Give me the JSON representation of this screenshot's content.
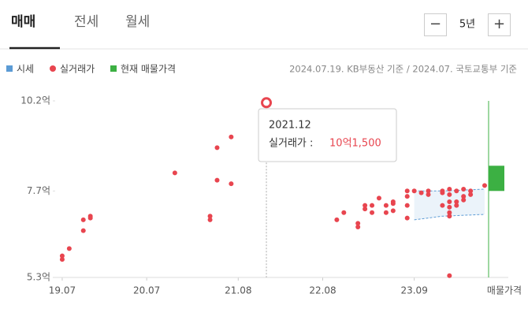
{
  "tabs": [
    "매매",
    "전세",
    "월세"
  ],
  "period": {
    "minus": "−",
    "label": "5년",
    "plus": "+"
  },
  "source": "2024.07.19. KB부동산 기준 / 2024.07. 국토교통부 기준",
  "chart_data": {
    "type": "scatter",
    "ylim": [
      5.3,
      10.2
    ],
    "yticks": [
      {
        "value": 10.2,
        "label": "10.2억"
      },
      {
        "value": 7.7,
        "label": "7.7억"
      },
      {
        "value": 5.3,
        "label": "5.3억"
      }
    ],
    "xlim": [
      "19.06",
      "24.07"
    ],
    "xticks": [
      "19.07",
      "20.07",
      "21.08",
      "22.08",
      "23.09"
    ],
    "listing_label": "매물가격",
    "tooltip": {
      "title": "2021.12",
      "label": "실거래가 :"
    },
    "series": [
      {
        "name": "시세",
        "color": "#5b9bd5",
        "x": [
          "23.09",
          "24.01",
          "24.07"
        ],
        "high": [
          7.7,
          7.7,
          7.75
        ],
        "low": [
          6.9,
          7.0,
          7.05
        ]
      },
      {
        "name": "실거래가",
        "color": "#e8454f",
        "x": [
          "19.07",
          "19.07",
          "19.08",
          "19.10",
          "19.10",
          "19.11",
          "19.11",
          "20.11",
          "21.04",
          "21.04",
          "21.05",
          "21.05",
          "21.07",
          "21.07",
          "21.12",
          "22.10",
          "22.11",
          "23.01",
          "23.01",
          "23.02",
          "23.02",
          "23.03",
          "23.03",
          "23.04",
          "23.05",
          "23.05",
          "23.06",
          "23.06",
          "23.06",
          "23.08",
          "23.08",
          "23.08",
          "23.08",
          "23.09",
          "23.10",
          "23.11",
          "23.11",
          "24.01",
          "24.01",
          "24.01",
          "24.02",
          "24.02",
          "24.02",
          "24.02",
          "24.02",
          "24.02",
          "24.02",
          "24.03",
          "24.03",
          "24.03",
          "24.04",
          "24.04",
          "24.04",
          "24.05",
          "24.05",
          "24.07"
        ],
        "values": [
          5.9,
          5.8,
          6.1,
          6.9,
          6.6,
          7.0,
          6.95,
          8.2,
          7.0,
          6.9,
          8.9,
          8.0,
          9.2,
          7.9,
          10.15,
          6.9,
          7.1,
          6.8,
          6.7,
          7.2,
          7.3,
          7.3,
          7.1,
          7.5,
          7.3,
          7.1,
          7.35,
          7.4,
          7.15,
          7.7,
          7.55,
          7.3,
          6.95,
          7.7,
          7.65,
          7.7,
          7.6,
          7.65,
          7.7,
          7.3,
          7.75,
          7.6,
          7.4,
          7.25,
          7.1,
          7.0,
          5.35,
          7.7,
          7.4,
          7.3,
          7.75,
          7.55,
          7.45,
          7.7,
          7.6,
          7.85
        ],
        "value_labels": [
          null,
          null,
          null,
          null,
          null,
          null,
          null,
          null,
          null,
          null,
          null,
          null,
          null,
          null,
          "10억1,500",
          null,
          null,
          null,
          null,
          null,
          null,
          null,
          null,
          null,
          null,
          null,
          null,
          null,
          null,
          null,
          null,
          null,
          null,
          null,
          null,
          null,
          null,
          null,
          null,
          null,
          null,
          null,
          null,
          null,
          null,
          null,
          null,
          null,
          null,
          null,
          null,
          null,
          null,
          null,
          null,
          null
        ]
      },
      {
        "name": "현재 매물가격",
        "color": "#3cb043",
        "low": 7.7,
        "high": 8.4
      }
    ]
  }
}
